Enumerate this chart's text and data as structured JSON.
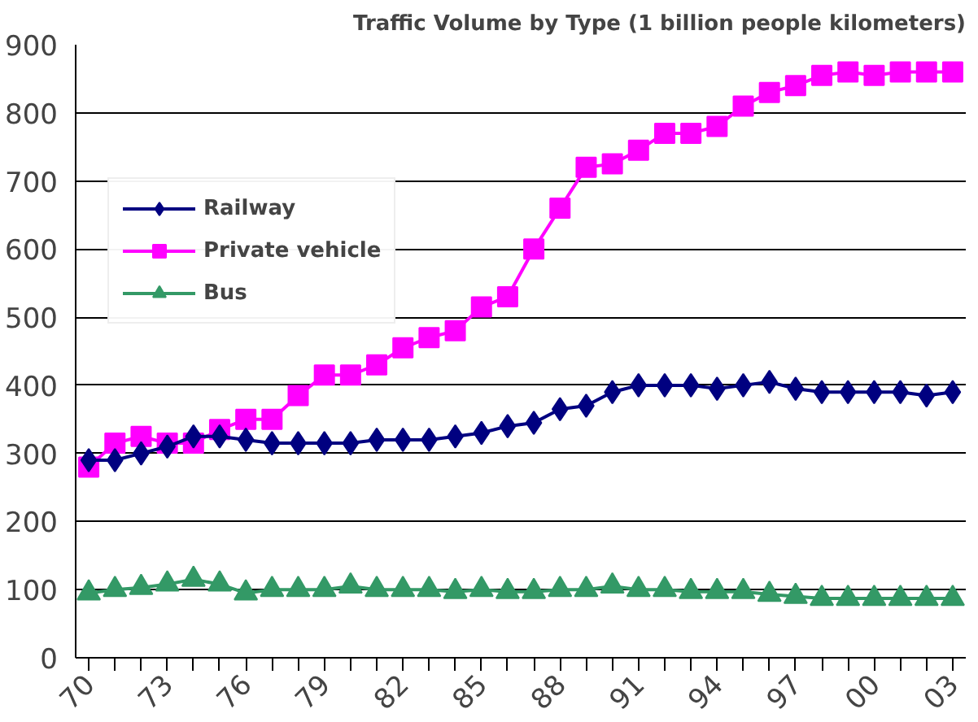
{
  "chart_data": {
    "type": "line",
    "title": "Traffic Volume by Type (1 billion people kilometers)",
    "categories": [
      "70",
      null,
      null,
      "73",
      null,
      null,
      "76",
      null,
      null,
      "79",
      null,
      null,
      "82",
      null,
      null,
      "85",
      null,
      null,
      "88",
      null,
      null,
      "91",
      null,
      null,
      "94",
      null,
      null,
      "97",
      null,
      null,
      "00",
      null,
      null,
      "03"
    ],
    "series": [
      {
        "name": "Railway",
        "color": "#000080",
        "marker": "diamond",
        "values": [
          290,
          290,
          300,
          310,
          325,
          325,
          320,
          315,
          315,
          315,
          315,
          320,
          320,
          320,
          325,
          330,
          340,
          345,
          365,
          370,
          390,
          400,
          400,
          400,
          395,
          400,
          405,
          395,
          390,
          390,
          390,
          390,
          385,
          390
        ]
      },
      {
        "name": "Private vehicle",
        "color": "#ff00ff",
        "marker": "square",
        "values": [
          280,
          315,
          325,
          315,
          315,
          335,
          350,
          350,
          385,
          415,
          415,
          430,
          455,
          470,
          480,
          515,
          530,
          600,
          660,
          720,
          725,
          745,
          770,
          770,
          780,
          810,
          830,
          840,
          855,
          860,
          855,
          860,
          860,
          860
        ]
      },
      {
        "name": "Bus",
        "color": "#339966",
        "marker": "triangle",
        "values": [
          95,
          100,
          103,
          108,
          115,
          108,
          95,
          100,
          100,
          100,
          105,
          100,
          100,
          100,
          97,
          100,
          97,
          97,
          100,
          100,
          105,
          100,
          100,
          97,
          97,
          97,
          93,
          90,
          87,
          87,
          87,
          87,
          87,
          87
        ]
      }
    ],
    "ylim": [
      0,
      900
    ],
    "yticks": [
      0,
      100,
      200,
      300,
      400,
      500,
      600,
      700,
      800,
      900
    ],
    "grid": "y",
    "legend": "top left",
    "line_style": "solid"
  }
}
